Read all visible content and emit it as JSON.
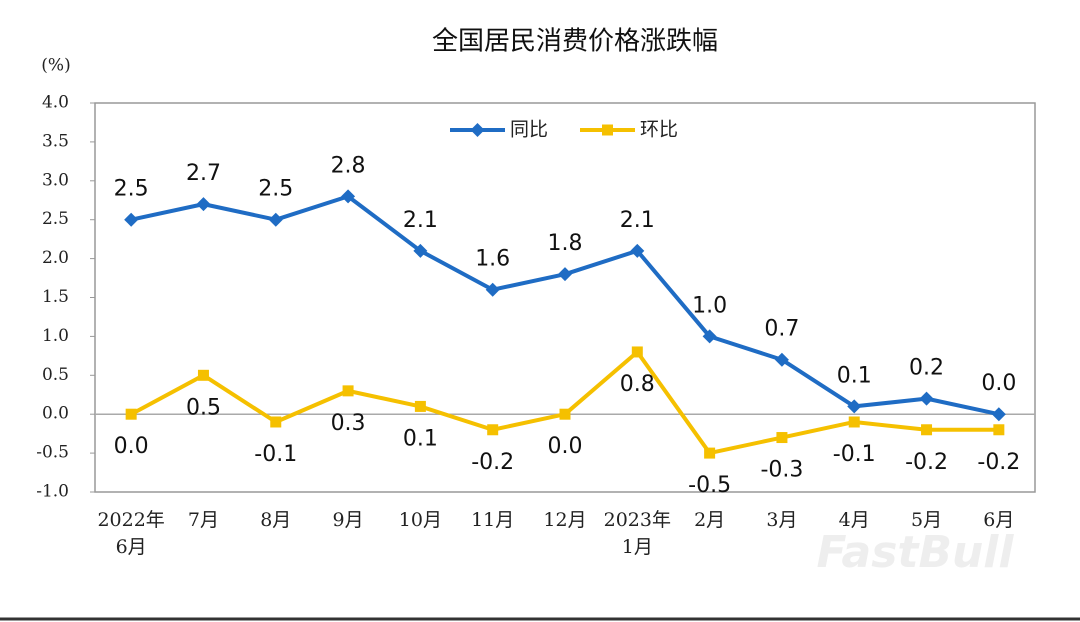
{
  "chart_data": {
    "type": "line",
    "title": "全国居民消费价格涨跌幅",
    "y_label": "(%)",
    "categories": [
      "2022年\n6月",
      "7月",
      "8月",
      "9月",
      "10月",
      "11月",
      "12月",
      "2023年\n1月",
      "2月",
      "3月",
      "4月",
      "5月",
      "6月"
    ],
    "series": [
      {
        "name": "同比",
        "color": "#1f6cc4",
        "marker": "diamond",
        "values": [
          2.5,
          2.7,
          2.5,
          2.8,
          2.1,
          1.6,
          1.8,
          2.1,
          1.0,
          0.7,
          0.1,
          0.2,
          0.0
        ],
        "value_labels": [
          "2.5",
          "2.7",
          "2.5",
          "2.8",
          "2.1",
          "1.6",
          "1.8",
          "2.1",
          "1.0",
          "0.7",
          "0.1",
          "0.2",
          "0.0"
        ]
      },
      {
        "name": "环比",
        "color": "#f5c000",
        "marker": "square",
        "values": [
          0.0,
          0.5,
          -0.1,
          0.3,
          0.1,
          -0.2,
          0.0,
          0.8,
          -0.5,
          -0.3,
          -0.1,
          -0.2,
          -0.2
        ],
        "value_labels": [
          "0.0",
          "0.5",
          "-0.1",
          "0.3",
          "0.1",
          "-0.2",
          "0.0",
          "0.8",
          "-0.5",
          "-0.3",
          "-0.1",
          "-0.2",
          "-0.2"
        ]
      }
    ],
    "ylim": [
      -1.0,
      4.0
    ],
    "yticks": [
      {
        "value": -1,
        "label": "-1.0"
      },
      {
        "value": -0.5,
        "label": "-0.5"
      },
      {
        "value": 0,
        "label": "0.0"
      },
      {
        "value": 0.5,
        "label": "0.5"
      },
      {
        "value": 1,
        "label": "1.0"
      },
      {
        "value": 1.5,
        "label": "1.5"
      },
      {
        "value": 2,
        "label": "2.0"
      },
      {
        "value": 2.5,
        "label": "2.5"
      },
      {
        "value": 3,
        "label": "3.0"
      },
      {
        "value": 3.5,
        "label": "3.5"
      },
      {
        "value": 4,
        "label": "4.0"
      }
    ],
    "legend": "top",
    "watermark": "FastBull"
  }
}
